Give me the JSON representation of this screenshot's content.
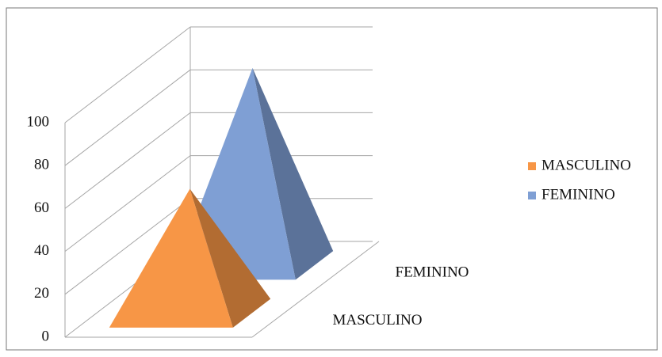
{
  "chart_data": {
    "type": "pyramid",
    "categories": [
      "MASCULINO",
      "FEMININO"
    ],
    "series": [
      {
        "name": "MASCULINO",
        "color": "#f79646",
        "values": [
          58,
          null
        ]
      },
      {
        "name": "FEMININO",
        "color": "#7f9fd4",
        "values": [
          null,
          92
        ]
      }
    ],
    "ylim": [
      0,
      100
    ],
    "yticks": [
      0,
      20,
      40,
      60,
      80,
      100
    ],
    "grid": true,
    "legend": "right"
  }
}
